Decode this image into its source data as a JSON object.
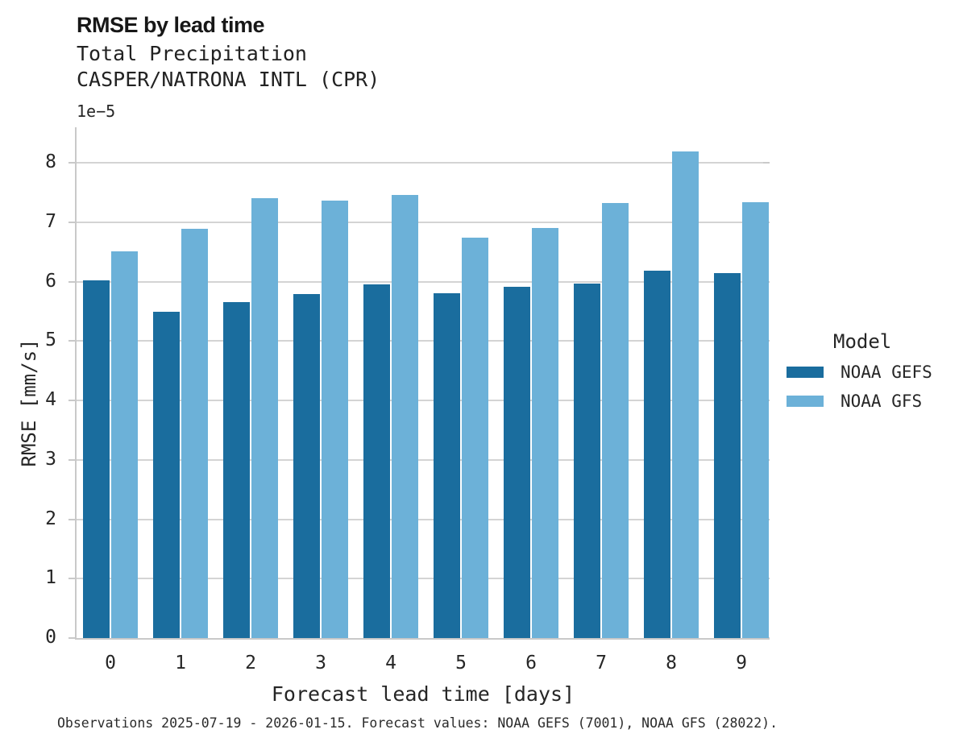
{
  "header": {
    "title": "RMSE by lead time",
    "subtitle_line1": "Total Precipitation",
    "subtitle_line2": "CASPER/NATRONA INTL (CPR)"
  },
  "axes": {
    "y_offset_label": "1e−5",
    "ylabel": "RMSE [mm/s]",
    "xlabel": "Forecast lead time [days]"
  },
  "legend": {
    "title": "Model",
    "items": [
      {
        "label": "NOAA GEFS",
        "color": "#1a6d9e"
      },
      {
        "label": "NOAA GFS",
        "color": "#6cb1d8"
      }
    ]
  },
  "footnote": "Observations 2025-07-19 - 2026-01-15. Forecast values: NOAA GEFS (7001), NOAA GFS (28022).",
  "colors": {
    "gefs_bar": "#1a6d9e",
    "gfs_bar": "#6cb1d8",
    "gridline": "#d4d4d4",
    "spine": "#c9c9c9",
    "text": "#262626"
  },
  "chart_data": {
    "type": "bar",
    "title": "RMSE by lead time",
    "subtitle": [
      "Total Precipitation",
      "CASPER/NATRONA INTL (CPR)"
    ],
    "categories": [
      "0",
      "1",
      "2",
      "3",
      "4",
      "5",
      "6",
      "7",
      "8",
      "9"
    ],
    "series": [
      {
        "name": "NOAA GEFS",
        "color": "#1a6d9e",
        "values": [
          6.02,
          5.5,
          5.65,
          5.79,
          5.96,
          5.8,
          5.91,
          5.97,
          6.18,
          6.14
        ]
      },
      {
        "name": "NOAA GFS",
        "color": "#6cb1d8",
        "values": [
          6.51,
          6.89,
          7.4,
          7.36,
          7.46,
          6.74,
          6.9,
          7.32,
          8.19,
          7.34
        ]
      }
    ],
    "value_scale_note": "values are in units of 1e-5",
    "xlabel": "Forecast lead time [days]",
    "ylabel": "RMSE [mm/s]",
    "ylim": [
      0,
      8.6
    ],
    "yticks": [
      0,
      1,
      2,
      3,
      4,
      5,
      6,
      7,
      8
    ],
    "grid": true,
    "legend_title": "Model",
    "legend_position": "right"
  }
}
